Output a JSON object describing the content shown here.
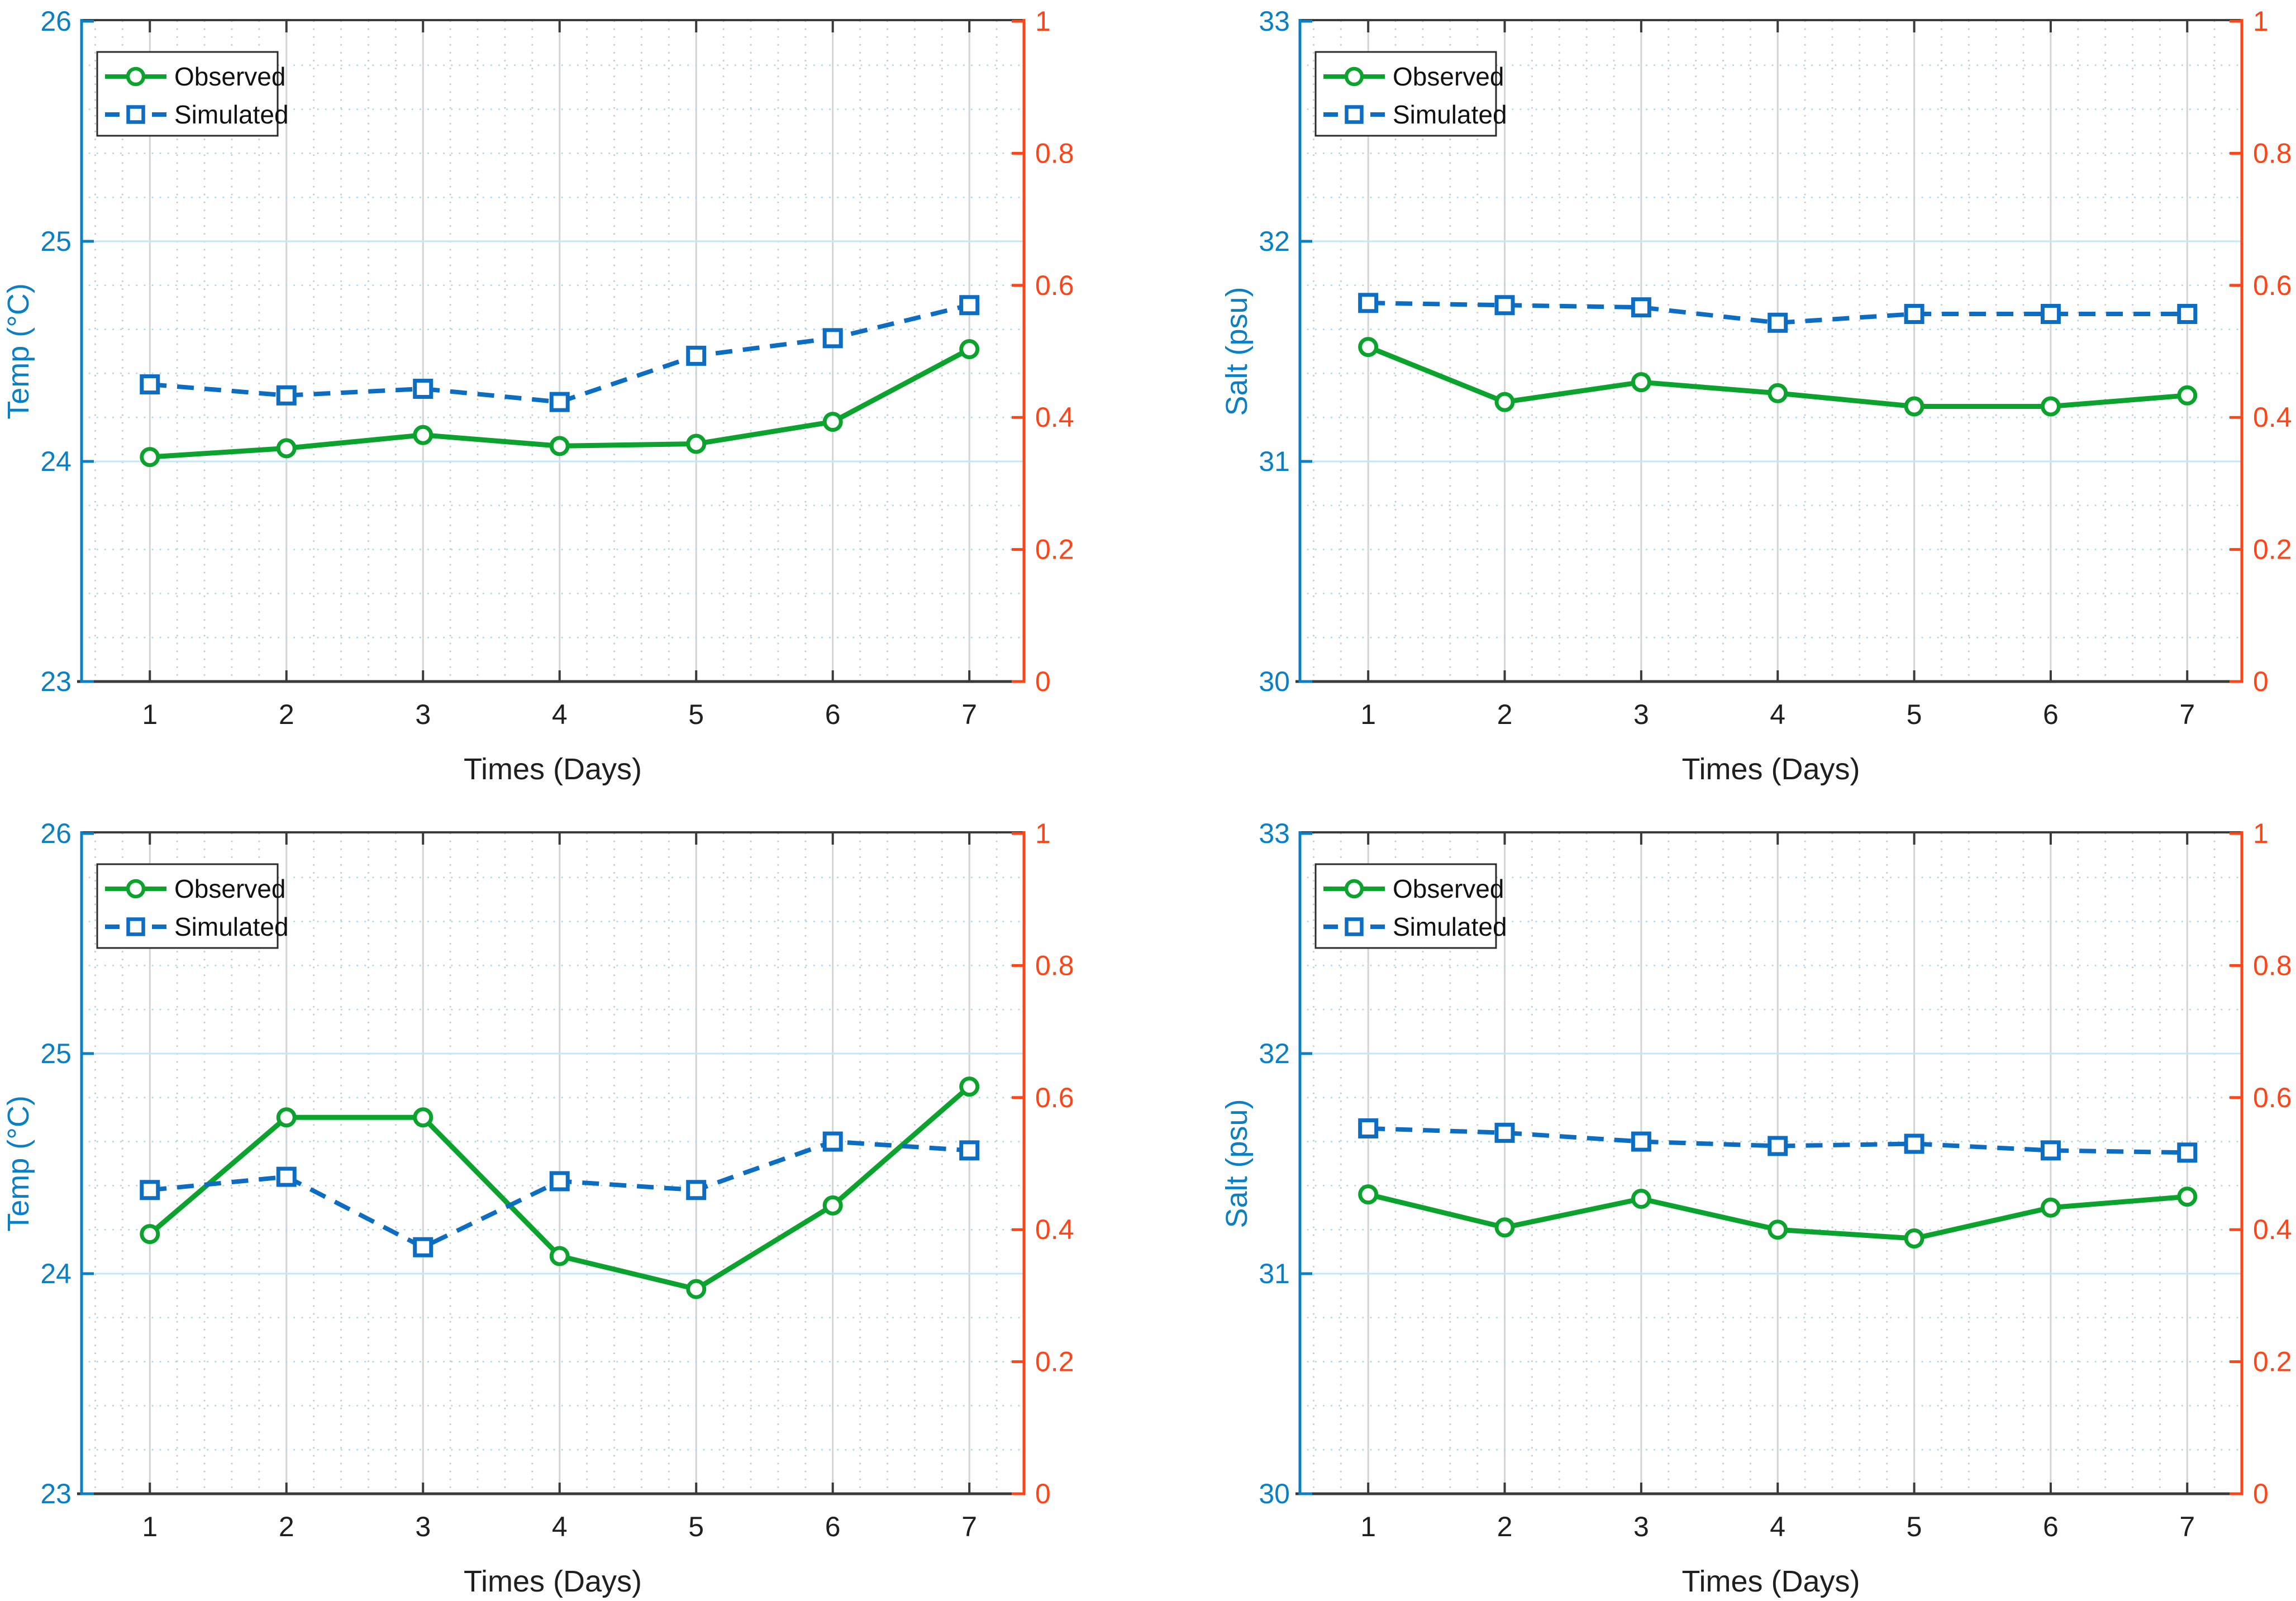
{
  "figure": {
    "background": "#ffffff",
    "rows": 2,
    "cols": 2
  },
  "theme": {
    "left_axis_color": "#0a7fc6",
    "right_axis_color": "#ff4418",
    "observed_color": "#0ba32d",
    "simulated_color": "#0c6dc2",
    "dark_spine_color": "#3a3a3a",
    "x_tick_label_color": "#1f1f1f",
    "grid_h_major_color": "#c3e6f8",
    "grid_h_minor_color": "#a9daf3",
    "grid_v_major_color": "#d4d4d4",
    "grid_v_minor_color": "#c9c9c9",
    "legend_border_color": "#2b2b2b",
    "legend_text_color": "#111111",
    "marker_fill": "#ffffff",
    "plot_background": "#ffffff"
  },
  "chart_data": [
    {
      "id": "temp-row1",
      "type": "line",
      "title": "",
      "xlabel": "Times (Days)",
      "x": [
        1,
        2,
        3,
        4,
        5,
        6,
        7
      ],
      "x_tick_labels": [
        "1",
        "2",
        "3",
        "4",
        "5",
        "6",
        "7"
      ],
      "xlim": [
        0.5,
        7.4
      ],
      "x_minor_step": 0.2,
      "grid": true,
      "left_axis": {
        "label": "Temp (°C)",
        "lim": [
          23,
          26
        ],
        "ticks": [
          23,
          24,
          25,
          26
        ],
        "tick_labels": [
          "23",
          "24",
          "25",
          "26"
        ],
        "minor_step": 0.2
      },
      "right_axis": {
        "label": "",
        "lim": [
          0,
          1
        ],
        "ticks": [
          0,
          0.2,
          0.4,
          0.6,
          0.8,
          1
        ],
        "tick_labels": [
          "0",
          "0.2",
          "0.4",
          "0.6",
          "0.8",
          "1"
        ]
      },
      "legend": {
        "position": "top-left",
        "entries": [
          "Observed",
          "Simulated"
        ]
      },
      "series": [
        {
          "name": "Observed",
          "marker": "circle",
          "line": "solid",
          "values": [
            24.02,
            24.06,
            24.12,
            24.07,
            24.08,
            24.18,
            24.51
          ]
        },
        {
          "name": "Simulated",
          "marker": "square",
          "line": "dashed",
          "values": [
            24.35,
            24.3,
            24.33,
            24.27,
            24.48,
            24.56,
            24.71
          ]
        }
      ]
    },
    {
      "id": "salt-row1",
      "type": "line",
      "title": "",
      "xlabel": "Times (Days)",
      "x": [
        1,
        2,
        3,
        4,
        5,
        6,
        7
      ],
      "x_tick_labels": [
        "1",
        "2",
        "3",
        "4",
        "5",
        "6",
        "7"
      ],
      "xlim": [
        0.5,
        7.4
      ],
      "x_minor_step": 0.2,
      "grid": true,
      "left_axis": {
        "label": "Salt (psu)",
        "lim": [
          30,
          33
        ],
        "ticks": [
          30,
          31,
          32,
          33
        ],
        "tick_labels": [
          "30",
          "31",
          "32",
          "33"
        ],
        "minor_step": 0.2
      },
      "right_axis": {
        "label": "",
        "lim": [
          0,
          1
        ],
        "ticks": [
          0,
          0.2,
          0.4,
          0.6,
          0.8,
          1
        ],
        "tick_labels": [
          "0",
          "0.2",
          "0.4",
          "0.6",
          "0.8",
          "1"
        ]
      },
      "legend": {
        "position": "top-left",
        "entries": [
          "Observed",
          "Simulated"
        ]
      },
      "series": [
        {
          "name": "Observed",
          "marker": "circle",
          "line": "solid",
          "values": [
            31.52,
            31.27,
            31.36,
            31.31,
            31.25,
            31.25,
            31.3
          ]
        },
        {
          "name": "Simulated",
          "marker": "square",
          "line": "dashed",
          "values": [
            31.72,
            31.71,
            31.7,
            31.63,
            31.67,
            31.67,
            31.67
          ]
        }
      ]
    },
    {
      "id": "temp-row2",
      "type": "line",
      "title": "",
      "xlabel": "Times (Days)",
      "x": [
        1,
        2,
        3,
        4,
        5,
        6,
        7
      ],
      "x_tick_labels": [
        "1",
        "2",
        "3",
        "4",
        "5",
        "6",
        "7"
      ],
      "xlim": [
        0.5,
        7.4
      ],
      "x_minor_step": 0.2,
      "grid": true,
      "left_axis": {
        "label": "Temp (°C)",
        "lim": [
          23,
          26
        ],
        "ticks": [
          23,
          24,
          25,
          26
        ],
        "tick_labels": [
          "23",
          "24",
          "25",
          "26"
        ],
        "minor_step": 0.2
      },
      "right_axis": {
        "label": "",
        "lim": [
          0,
          1
        ],
        "ticks": [
          0,
          0.2,
          0.4,
          0.6,
          0.8,
          1
        ],
        "tick_labels": [
          "0",
          "0.2",
          "0.4",
          "0.6",
          "0.8",
          "1"
        ]
      },
      "legend": {
        "position": "top-left",
        "entries": [
          "Observed",
          "Simulated"
        ]
      },
      "series": [
        {
          "name": "Observed",
          "marker": "circle",
          "line": "solid",
          "values": [
            24.18,
            24.71,
            24.71,
            24.08,
            23.93,
            24.31,
            24.85
          ]
        },
        {
          "name": "Simulated",
          "marker": "square",
          "line": "dashed",
          "values": [
            24.38,
            24.44,
            24.12,
            24.42,
            24.38,
            24.6,
            24.56
          ]
        }
      ]
    },
    {
      "id": "salt-row2",
      "type": "line",
      "title": "",
      "xlabel": "Times (Days)",
      "x": [
        1,
        2,
        3,
        4,
        5,
        6,
        7
      ],
      "x_tick_labels": [
        "1",
        "2",
        "3",
        "4",
        "5",
        "6",
        "7"
      ],
      "xlim": [
        0.5,
        7.4
      ],
      "x_minor_step": 0.2,
      "grid": true,
      "left_axis": {
        "label": "Salt (psu)",
        "lim": [
          30,
          33
        ],
        "ticks": [
          30,
          31,
          32,
          33
        ],
        "tick_labels": [
          "30",
          "31",
          "32",
          "33"
        ],
        "minor_step": 0.2
      },
      "right_axis": {
        "label": "",
        "lim": [
          0,
          1
        ],
        "ticks": [
          0,
          0.2,
          0.4,
          0.6,
          0.8,
          1
        ],
        "tick_labels": [
          "0",
          "0.2",
          "0.4",
          "0.6",
          "0.8",
          "1"
        ]
      },
      "legend": {
        "position": "top-left",
        "entries": [
          "Observed",
          "Simulated"
        ]
      },
      "series": [
        {
          "name": "Observed",
          "marker": "circle",
          "line": "solid",
          "values": [
            31.36,
            31.21,
            31.34,
            31.2,
            31.16,
            31.3,
            31.35
          ]
        },
        {
          "name": "Simulated",
          "marker": "square",
          "line": "dashed",
          "values": [
            31.66,
            31.64,
            31.6,
            31.58,
            31.59,
            31.56,
            31.55
          ]
        }
      ]
    }
  ]
}
